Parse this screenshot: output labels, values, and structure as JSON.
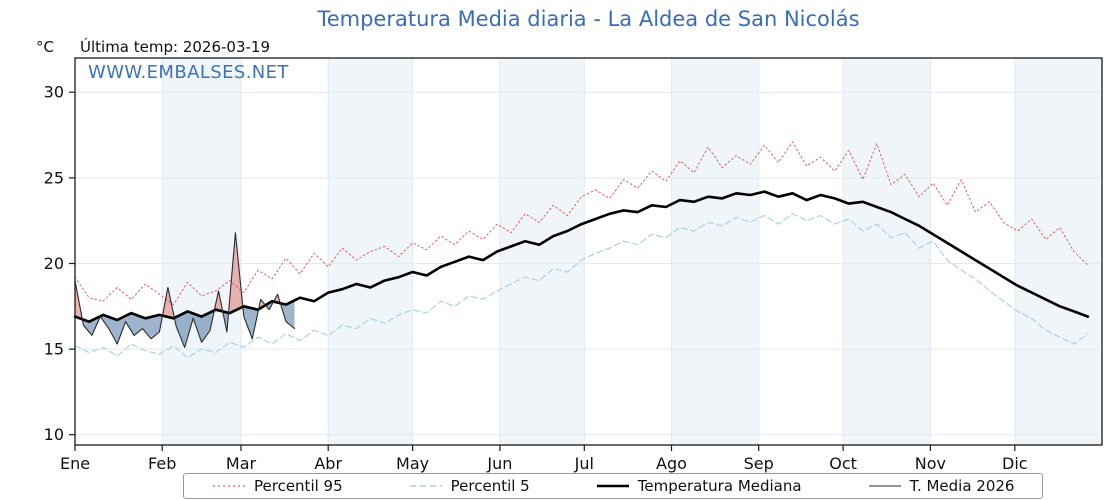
{
  "header": {
    "unit": "°C",
    "last_temp_label": "Última temp: 2026-03-19"
  },
  "watermark": "WWW.EMBALSES.NET",
  "chart_data": {
    "type": "line",
    "title": "Temperatura Media diaria - La Aldea de San Nicolás",
    "title_color": "#3a6db6",
    "xlabel": "",
    "ylabel": "°C",
    "xlim": [
      0,
      365
    ],
    "ylim": [
      9.4,
      32
    ],
    "yticks": [
      10,
      15,
      20,
      25,
      30
    ],
    "month_boundaries": [
      0,
      31,
      59,
      90,
      120,
      151,
      181,
      212,
      243,
      273,
      304,
      334,
      365
    ],
    "month_labels": [
      "Ene",
      "Feb",
      "Mar",
      "Abr",
      "May",
      "Jun",
      "Jul",
      "Ago",
      "Sep",
      "Oct",
      "Nov",
      "Dic"
    ],
    "shaded_months": [
      1,
      3,
      5,
      7,
      9,
      11
    ],
    "band_color": "#f0f5fa",
    "grid_color": "#e2e9f0",
    "legend_position": "bottom",
    "series": [
      {
        "name": "Percentil 95",
        "color": "#d95f5f",
        "width": 1,
        "dash": "1.6 2.8",
        "x_start": 0,
        "x_step": 5,
        "values": [
          19.2,
          18.0,
          17.8,
          18.6,
          17.9,
          18.8,
          18.2,
          17.6,
          18.9,
          18.1,
          18.4,
          19.0,
          18.3,
          19.6,
          19.1,
          20.3,
          19.4,
          20.6,
          19.8,
          20.9,
          20.2,
          20.7,
          21.0,
          20.4,
          21.2,
          20.8,
          21.6,
          21.1,
          21.9,
          21.4,
          22.3,
          21.8,
          22.9,
          22.4,
          23.4,
          22.8,
          23.9,
          24.3,
          23.8,
          24.9,
          24.4,
          25.4,
          24.8,
          26.0,
          25.3,
          26.8,
          25.6,
          26.3,
          25.8,
          26.9,
          25.9,
          27.1,
          25.7,
          26.2,
          25.4,
          26.6,
          24.9,
          27.0,
          24.6,
          25.2,
          23.9,
          24.7,
          23.4,
          24.9,
          23.0,
          23.6,
          22.4,
          21.9,
          22.6,
          21.4,
          22.1,
          20.7,
          19.9
        ]
      },
      {
        "name": "Percentil 5",
        "color": "#a9d4e2",
        "width": 1.2,
        "dash": "6 3.5",
        "x_start": 0,
        "x_step": 5,
        "values": [
          15.2,
          14.8,
          15.1,
          14.6,
          15.3,
          14.9,
          14.7,
          15.2,
          14.5,
          15.0,
          14.8,
          15.4,
          15.1,
          15.7,
          15.3,
          15.9,
          15.5,
          16.1,
          15.8,
          16.4,
          16.2,
          16.8,
          16.5,
          17.0,
          17.3,
          17.1,
          17.8,
          17.5,
          18.1,
          17.9,
          18.4,
          18.8,
          19.2,
          19.0,
          19.7,
          19.5,
          20.2,
          20.6,
          20.9,
          21.3,
          21.1,
          21.7,
          21.5,
          22.1,
          21.9,
          22.4,
          22.2,
          22.7,
          22.4,
          22.8,
          22.3,
          22.9,
          22.5,
          22.8,
          22.3,
          22.6,
          21.9,
          22.3,
          21.5,
          21.8,
          20.9,
          21.3,
          20.2,
          19.6,
          19.1,
          18.4,
          17.8,
          17.2,
          16.8,
          16.1,
          15.7,
          15.3,
          15.9
        ]
      },
      {
        "name": "Temperatura Mediana",
        "color": "#000000",
        "width": 2.6,
        "dash": null,
        "x_start": 0,
        "x_step": 5,
        "values": [
          16.9,
          16.6,
          17.0,
          16.7,
          17.1,
          16.8,
          17.0,
          16.8,
          17.2,
          16.9,
          17.3,
          17.1,
          17.5,
          17.3,
          17.8,
          17.6,
          18.0,
          17.8,
          18.3,
          18.5,
          18.8,
          18.6,
          19.0,
          19.2,
          19.5,
          19.3,
          19.8,
          20.1,
          20.4,
          20.2,
          20.7,
          21.0,
          21.3,
          21.1,
          21.6,
          21.9,
          22.3,
          22.6,
          22.9,
          23.1,
          23.0,
          23.4,
          23.3,
          23.7,
          23.6,
          23.9,
          23.8,
          24.1,
          24.0,
          24.2,
          23.9,
          24.1,
          23.7,
          24.0,
          23.8,
          23.5,
          23.6,
          23.3,
          23.0,
          22.6,
          22.2,
          21.7,
          21.2,
          20.7,
          20.2,
          19.7,
          19.2,
          18.7,
          18.3,
          17.9,
          17.5,
          17.2,
          16.9
        ]
      },
      {
        "name": "T. Media 2026",
        "color": "#2b2b2b",
        "width": 1.1,
        "dash": null,
        "x_start": 0,
        "x_step": 3,
        "values": [
          19.0,
          16.4,
          15.8,
          16.9,
          16.2,
          15.3,
          16.6,
          15.8,
          16.2,
          15.6,
          16.0,
          18.6,
          16.3,
          15.1,
          16.8,
          15.4,
          16.1,
          18.4,
          16.0,
          21.8,
          16.9,
          15.6,
          17.9,
          17.3,
          18.2,
          16.6,
          16.2
        ]
      }
    ],
    "fill": {
      "between": [
        "T. Media 2026",
        "Temperatura Mediana"
      ],
      "above_color": "rgba(222,110,100,0.5)",
      "below_color": "rgba(92,130,170,0.6)"
    }
  },
  "legend": {
    "items": [
      {
        "label": "Percentil 95",
        "color": "#d95f5f",
        "width": 1.2,
        "dash": "2 3"
      },
      {
        "label": "Percentil 5",
        "color": "#a9d4e2",
        "width": 1.4,
        "dash": "6 4"
      },
      {
        "label": "Temperatura Mediana",
        "color": "#000000",
        "width": 2.6,
        "dash": null
      },
      {
        "label": "T. Media 2026",
        "color": "#2b2b2b",
        "width": 1.1,
        "dash": null
      }
    ]
  }
}
